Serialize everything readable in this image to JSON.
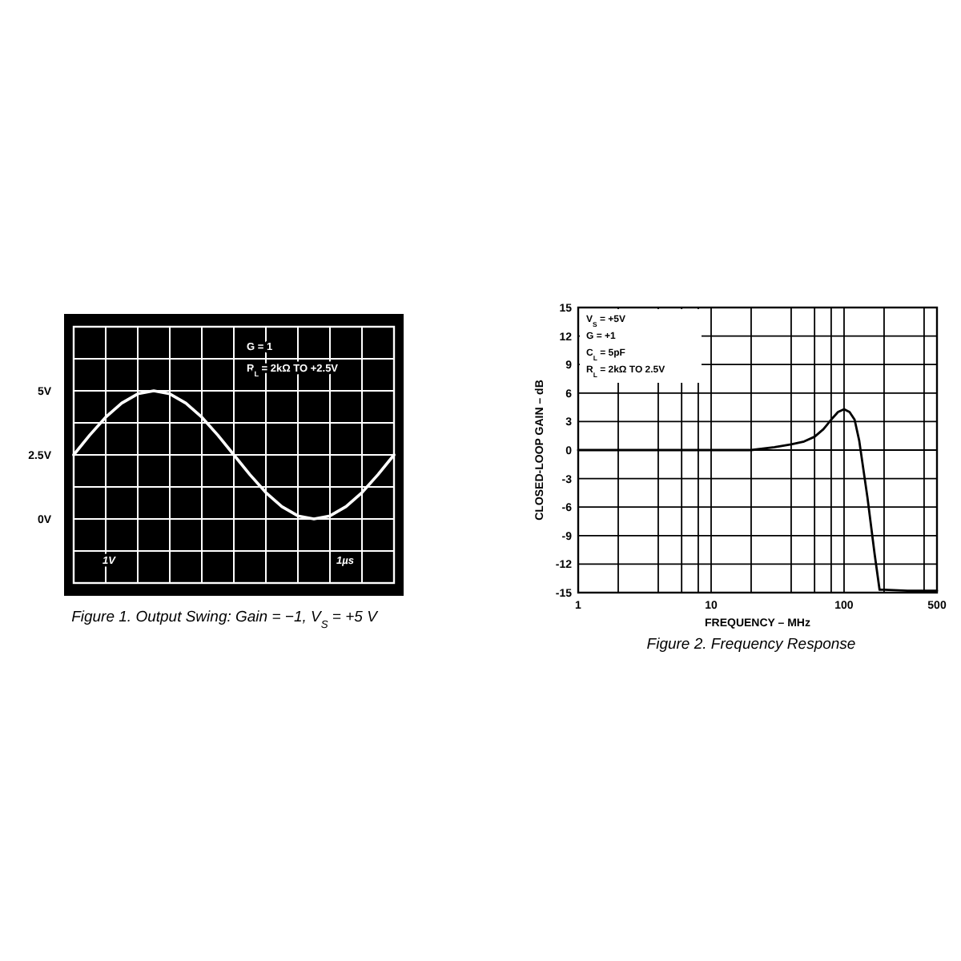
{
  "chart_data": [
    {
      "type": "line",
      "title": "Figure 1. Output Swing: Gain = −1, V$_{S}$ = +5 V",
      "annotations": [
        "G = 1",
        "R$_{L}$ = 2kΩ TO +2.5V",
        "1V",
        "1µs"
      ],
      "categories": [
        null,
        null,
        null,
        null,
        null,
        null,
        null,
        null,
        null,
        null,
        null,
        null,
        null,
        null,
        null,
        null,
        null,
        null,
        null,
        null,
        null
      ],
      "series": [
        {
          "color": "#ffffff",
          "values": [
            2.5,
            3.27,
            3.97,
            4.52,
            4.88,
            5,
            4.88,
            4.52,
            3.97,
            3.27,
            2.5,
            1.73,
            1.03,
            0.48,
            0.12,
            0,
            0.12,
            0.48,
            1.03,
            1.73,
            2.5
          ]
        }
      ],
      "ylim": [
        -2.5,
        7.5
      ],
      "yticks": [
        {
          "value": -2.5,
          "label": null
        },
        {
          "value": -1.25,
          "label": null
        },
        {
          "value": 0,
          "label": "0V"
        },
        {
          "value": 1.25,
          "label": null
        },
        {
          "value": 2.5,
          "label": "2.5V"
        },
        {
          "value": 3.75,
          "label": null
        },
        {
          "value": 5,
          "label": "5V"
        },
        {
          "value": 6.25,
          "label": null
        },
        {
          "value": 7.5,
          "label": null
        }
      ],
      "grid": true,
      "tick_labels": "y"
    },
    {
      "type": "line",
      "title": "Figure 2. Frequency Response",
      "xlabel": "FREQUENCY – MHz",
      "ylabel": "CLOSED-LOOP GAIN – dB",
      "annotations": [
        "V$_{S}$ = +5V",
        "G = +1",
        "C$_{L}$ = 5pF",
        "R$_{L}$ = 2kΩ TO 2.5V"
      ],
      "x": [
        1,
        10,
        20,
        30,
        40,
        50,
        60,
        70,
        80,
        90,
        100,
        110,
        120,
        130,
        150,
        170,
        185,
        200,
        300,
        500
      ],
      "series": [
        {
          "color": "#000000",
          "values": [
            0,
            0,
            0,
            0.3,
            0.6,
            0.9,
            1.4,
            2.2,
            3.2,
            4,
            4.3,
            4,
            3.2,
            1,
            -5,
            -11,
            -14.7,
            -14.7,
            -14.8,
            -14.8
          ]
        }
      ],
      "log": "x",
      "xlim": [
        1,
        500
      ],
      "xticks": [
        1,
        {
          "value": 2,
          "label": null
        },
        {
          "value": 4,
          "label": null
        },
        {
          "value": 6,
          "label": null
        },
        {
          "value": 8,
          "label": null
        },
        10,
        {
          "value": 20,
          "label": null
        },
        {
          "value": 40,
          "label": null
        },
        {
          "value": 60,
          "label": null
        },
        {
          "value": 80,
          "label": null
        },
        100,
        {
          "value": 200,
          "label": null
        },
        {
          "value": 400,
          "label": null
        },
        500
      ],
      "ylim": [
        -15,
        15
      ],
      "yticks": [
        -15,
        -12,
        -9,
        -6,
        -3,
        0,
        3,
        6,
        9,
        12,
        15
      ],
      "grid": true
    }
  ]
}
